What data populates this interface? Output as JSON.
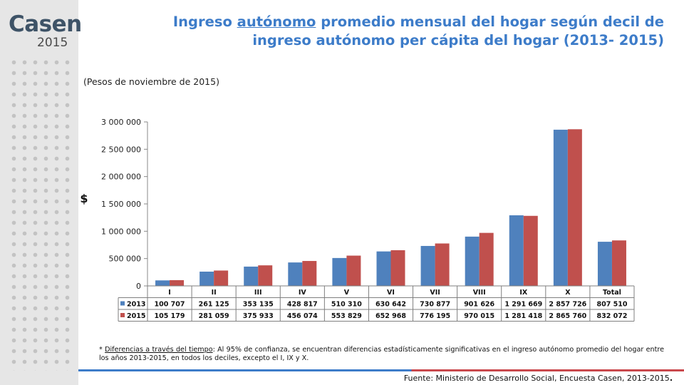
{
  "logo": {
    "word": "Casen",
    "year": "2015"
  },
  "title": {
    "pre": "Ingreso ",
    "underlined": "autónomo",
    "post": " promedio mensual del hogar según decil de ingreso autónomo per cápita del hogar (2013- 2015)"
  },
  "unit_note": "(Pesos de noviembre de 2015)",
  "footnote": {
    "star": "* ",
    "underlined": "Diferencias a través del tiempo",
    "text": ": Al 95% de confianza, se encuentran diferencias estadísticamente significativas en el ingreso autónomo promedio del hogar entre los años 2013-2015, en todos los deciles, excepto el I, IX y X."
  },
  "source": {
    "text": "Fuente: Ministerio de Desarrollo Social, Encuesta Casen, 2013-2015",
    "end": "."
  },
  "colors": {
    "s2013": "#4f81bd",
    "s2015": "#c0504d",
    "axis": "#888888",
    "grid_line": "#d9d9d9"
  },
  "chart_data": {
    "type": "bar",
    "ylabel": "$",
    "ylim": [
      0,
      3000000
    ],
    "yticks": [
      0,
      500000,
      1000000,
      1500000,
      2000000,
      2500000,
      3000000
    ],
    "ytick_labels": [
      "0",
      "500 000",
      "1 000 000",
      "1 500 000",
      "2 000 000",
      "2 500 000",
      "3 000 000"
    ],
    "grid": false,
    "legend": "data-table",
    "categories": [
      "I",
      "II",
      "III",
      "IV",
      "V",
      "VI",
      "VII",
      "VIII",
      "IX",
      "X",
      "Total"
    ],
    "series": [
      {
        "name": "2013",
        "values": [
          100707,
          261125,
          353135,
          428817,
          510310,
          630642,
          730877,
          901626,
          1291669,
          2857726,
          807510
        ],
        "labels": [
          "100 707",
          "261 125",
          "353 135",
          "428 817",
          "510 310",
          "630 642",
          "730 877",
          "901 626",
          "1 291 669",
          "2 857 726",
          "807 510"
        ]
      },
      {
        "name": "2015",
        "values": [
          105179,
          281059,
          375933,
          456074,
          553829,
          652968,
          776195,
          970015,
          1281418,
          2865760,
          832072
        ],
        "labels": [
          "105 179",
          "281 059",
          "375 933",
          "456 074",
          "553 829",
          "652 968",
          "776 195",
          "970 015",
          "1 281 418",
          "2 865 760",
          "832 072"
        ]
      }
    ]
  }
}
